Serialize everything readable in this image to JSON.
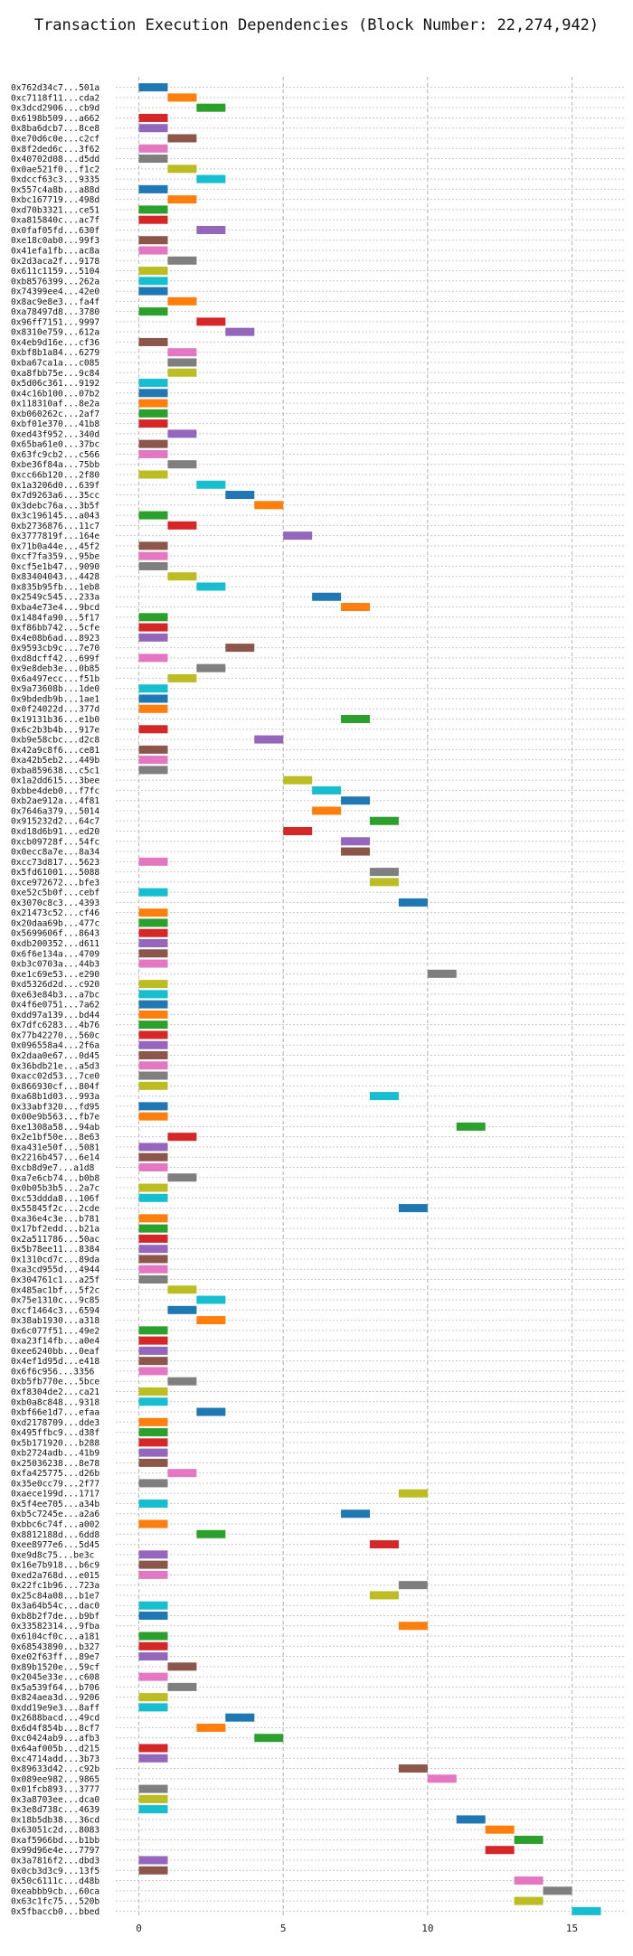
{
  "chart_data": {
    "type": "gantt",
    "title": "Transaction Execution Dependencies (Block Number: 22,274,942)",
    "xlabel": "",
    "ylabel": "",
    "x_ticks": [
      0,
      5,
      10,
      15
    ],
    "xlim": [
      -0.8,
      16.8
    ],
    "grid": true,
    "colors": [
      "#1f77b4",
      "#ff7f0e",
      "#2ca02c",
      "#d62728",
      "#9467bd",
      "#8c564b",
      "#e377c2",
      "#7f7f7f",
      "#bcbd22",
      "#17becf"
    ],
    "tasks": [
      {
        "label": "0x762d34c7...501a",
        "start": 0
      },
      {
        "label": "0xc7118f11...cda2",
        "start": 1
      },
      {
        "label": "0x3dcd2906...cb9d",
        "start": 2
      },
      {
        "label": "0x6198b509...a662",
        "start": 0
      },
      {
        "label": "0x8ba6dcb7...8ce8",
        "start": 0
      },
      {
        "label": "0xe70d6c0e...c2cf",
        "start": 1
      },
      {
        "label": "0x8f2ded6c...3f62",
        "start": 0
      },
      {
        "label": "0x40702d08...d5dd",
        "start": 0
      },
      {
        "label": "0x0ae521f0...f1c2",
        "start": 1
      },
      {
        "label": "0xdccf63c3...9335",
        "start": 2
      },
      {
        "label": "0x557c4a8b...a88d",
        "start": 0
      },
      {
        "label": "0xbc167719...498d",
        "start": 1
      },
      {
        "label": "0xd70b3321...ce51",
        "start": 0
      },
      {
        "label": "0xa815840c...ac7f",
        "start": 0
      },
      {
        "label": "0x0faf05fd...630f",
        "start": 2
      },
      {
        "label": "0xe18c0ab0...99f3",
        "start": 0
      },
      {
        "label": "0x41efa1fb...ac8a",
        "start": 0
      },
      {
        "label": "0x2d3aca2f...9178",
        "start": 1
      },
      {
        "label": "0x611c1159...5104",
        "start": 0
      },
      {
        "label": "0xb8576399...262a",
        "start": 0
      },
      {
        "label": "0x74399ee4...42e0",
        "start": 0
      },
      {
        "label": "0x8ac9e8e3...fa4f",
        "start": 1
      },
      {
        "label": "0xa78497d8...3780",
        "start": 0
      },
      {
        "label": "0x96ff7151...9997",
        "start": 2
      },
      {
        "label": "0x8310e759...612a",
        "start": 3
      },
      {
        "label": "0x4eb9d16e...cf36",
        "start": 0
      },
      {
        "label": "0xbf8b1a84...6279",
        "start": 1
      },
      {
        "label": "0xba67ca1a...c085",
        "start": 1
      },
      {
        "label": "0xa8fbb75e...9c84",
        "start": 1
      },
      {
        "label": "0x5d06c361...9192",
        "start": 0
      },
      {
        "label": "0x4c16b100...07b2",
        "start": 0
      },
      {
        "label": "0x118310af...8e2a",
        "start": 0
      },
      {
        "label": "0xb060262c...2af7",
        "start": 0
      },
      {
        "label": "0xbf01e370...41b8",
        "start": 0
      },
      {
        "label": "0xed43f952...340d",
        "start": 1
      },
      {
        "label": "0x65ba61e0...37bc",
        "start": 0
      },
      {
        "label": "0x63fc9cb2...c566",
        "start": 0
      },
      {
        "label": "0xbe36f84a...75bb",
        "start": 1
      },
      {
        "label": "0xcc66b120...2f80",
        "start": 0
      },
      {
        "label": "0x1a3206d0...639f",
        "start": 2
      },
      {
        "label": "0x7d9263a6...35cc",
        "start": 3
      },
      {
        "label": "0x3debc76a...3b5f",
        "start": 4
      },
      {
        "label": "0x3c196145...a043",
        "start": 0
      },
      {
        "label": "0xb2736876...11c7",
        "start": 1
      },
      {
        "label": "0x3777819f...164e",
        "start": 5
      },
      {
        "label": "0x71b0a44e...45f2",
        "start": 0
      },
      {
        "label": "0xcf7fa359...95be",
        "start": 0
      },
      {
        "label": "0xcf5e1b47...9090",
        "start": 0
      },
      {
        "label": "0x83404043...4428",
        "start": 1
      },
      {
        "label": "0x835b95fb...1eb8",
        "start": 2
      },
      {
        "label": "0x2549c545...233a",
        "start": 6
      },
      {
        "label": "0xba4e73e4...9bcd",
        "start": 7
      },
      {
        "label": "0x1484fa90...5f17",
        "start": 0
      },
      {
        "label": "0xf86bb742...5cfe",
        "start": 0
      },
      {
        "label": "0x4e08b6ad...8923",
        "start": 0
      },
      {
        "label": "0x9593cb9c...7e70",
        "start": 3
      },
      {
        "label": "0xd8dcff42...699f",
        "start": 0
      },
      {
        "label": "0x9e8deb3e...0b85",
        "start": 2
      },
      {
        "label": "0x6a497ecc...f51b",
        "start": 1
      },
      {
        "label": "0x9a73608b...1de0",
        "start": 0
      },
      {
        "label": "0x9bdedb9b...1ae1",
        "start": 0
      },
      {
        "label": "0x0f24022d...377d",
        "start": 0
      },
      {
        "label": "0x19131b36...e1b0",
        "start": 7
      },
      {
        "label": "0x6c2b3b4b...917e",
        "start": 0
      },
      {
        "label": "0xb9e58cbc...d2c8",
        "start": 4
      },
      {
        "label": "0x42a9c8f6...ce81",
        "start": 0
      },
      {
        "label": "0xa42b5eb2...449b",
        "start": 0
      },
      {
        "label": "0xba859638...c5c1",
        "start": 0
      },
      {
        "label": "0x1a2dd615...3bee",
        "start": 5
      },
      {
        "label": "0xbbe4deb0...f7fc",
        "start": 6
      },
      {
        "label": "0xb2ae912a...4f81",
        "start": 7
      },
      {
        "label": "0x7646a379...5014",
        "start": 6
      },
      {
        "label": "0x915232d2...64c7",
        "start": 8
      },
      {
        "label": "0xd18d6b91...ed20",
        "start": 5
      },
      {
        "label": "0xcb09728f...54fc",
        "start": 7
      },
      {
        "label": "0x0ecc8a7e...8a34",
        "start": 7
      },
      {
        "label": "0xcc73d817...5623",
        "start": 0
      },
      {
        "label": "0x5fd61001...5088",
        "start": 8
      },
      {
        "label": "0xce972672...bfe3",
        "start": 8
      },
      {
        "label": "0xe52c5b0f...cebf",
        "start": 0
      },
      {
        "label": "0x3070c8c3...4393",
        "start": 9
      },
      {
        "label": "0x21473c52...cf46",
        "start": 0
      },
      {
        "label": "0x20daa69b...477c",
        "start": 0
      },
      {
        "label": "0x5699606f...8643",
        "start": 0
      },
      {
        "label": "0xdb200352...d611",
        "start": 0
      },
      {
        "label": "0x6f6e134a...4709",
        "start": 0
      },
      {
        "label": "0xb3c0703a...44b3",
        "start": 0
      },
      {
        "label": "0xe1c69e53...e290",
        "start": 10
      },
      {
        "label": "0xd5326d2d...c920",
        "start": 0
      },
      {
        "label": "0xe63e84b3...a7bc",
        "start": 0
      },
      {
        "label": "0x4f6e0751...7a62",
        "start": 0
      },
      {
        "label": "0xdd97a139...bd44",
        "start": 0
      },
      {
        "label": "0x7dfc6283...4b76",
        "start": 0
      },
      {
        "label": "0x77b42270...560c",
        "start": 0
      },
      {
        "label": "0x096558a4...2f6a",
        "start": 0
      },
      {
        "label": "0x2daa0e67...0d45",
        "start": 0
      },
      {
        "label": "0x36bdb21e...a5d3",
        "start": 0
      },
      {
        "label": "0xacc02d53...7ce0",
        "start": 0
      },
      {
        "label": "0x866930cf...804f",
        "start": 0
      },
      {
        "label": "0xa68b1d03...993a",
        "start": 8
      },
      {
        "label": "0x33abf320...fd95",
        "start": 0
      },
      {
        "label": "0x00e9b563...fb7e",
        "start": 0
      },
      {
        "label": "0xe1308a58...94ab",
        "start": 11
      },
      {
        "label": "0x2e1bf50e...8e63",
        "start": 1
      },
      {
        "label": "0xa431e50f...5081",
        "start": 0
      },
      {
        "label": "0x2216b457...6e14",
        "start": 0
      },
      {
        "label": "0xcb8d9e7...a1d8",
        "start": 0
      },
      {
        "label": "0xa7e6cb74...b0b8",
        "start": 1
      },
      {
        "label": "0x0b05b3b5...2a7c",
        "start": 0
      },
      {
        "label": "0xc53ddda8...106f",
        "start": 0
      },
      {
        "label": "0x55845f2c...2cde",
        "start": 9
      },
      {
        "label": "0xa36e4c3e...b781",
        "start": 0
      },
      {
        "label": "0x17bf2edd...b21a",
        "start": 0
      },
      {
        "label": "0x2a511786...50ac",
        "start": 0
      },
      {
        "label": "0x5b78ee11...8384",
        "start": 0
      },
      {
        "label": "0x1310cd7c...89da",
        "start": 0
      },
      {
        "label": "0xa3cd955d...4944",
        "start": 0
      },
      {
        "label": "0x304761c1...a25f",
        "start": 0
      },
      {
        "label": "0x485ac1bf...5f2c",
        "start": 1
      },
      {
        "label": "0x75e1310c...9c85",
        "start": 2
      },
      {
        "label": "0xcf1464c3...6594",
        "start": 1
      },
      {
        "label": "0x38ab1930...a318",
        "start": 2
      },
      {
        "label": "0x6c077f51...49e2",
        "start": 0
      },
      {
        "label": "0xa23f14fb...a0e4",
        "start": 0
      },
      {
        "label": "0xee6240bb...0eaf",
        "start": 0
      },
      {
        "label": "0x4ef1d95d...e418",
        "start": 0
      },
      {
        "label": "0x6f6c956...3356",
        "start": 0
      },
      {
        "label": "0xb5fb770e...5bce",
        "start": 1
      },
      {
        "label": "0xf8304de2...ca21",
        "start": 0
      },
      {
        "label": "0xb0a8c848...9318",
        "start": 0
      },
      {
        "label": "0xbf66e1d7...efaa",
        "start": 2
      },
      {
        "label": "0xd2178709...dde3",
        "start": 0
      },
      {
        "label": "0x495ffbc9...d38f",
        "start": 0
      },
      {
        "label": "0x5b171920...b288",
        "start": 0
      },
      {
        "label": "0xb2724adb...41b9",
        "start": 0
      },
      {
        "label": "0x25036238...8e78",
        "start": 0
      },
      {
        "label": "0xfa425775...d26b",
        "start": 1
      },
      {
        "label": "0x35e0cc79...2f77",
        "start": 0
      },
      {
        "label": "0xaece199d...1717",
        "start": 9
      },
      {
        "label": "0x5f4ee705...a34b",
        "start": 0
      },
      {
        "label": "0xb5c7245e...a2a6",
        "start": 7
      },
      {
        "label": "0xbbc6c74f...a002",
        "start": 0
      },
      {
        "label": "0x8812188d...6dd8",
        "start": 2
      },
      {
        "label": "0xee8977e6...5d45",
        "start": 8
      },
      {
        "label": "0xe9d8c75...be3c",
        "start": 0
      },
      {
        "label": "0x16e7b918...b6c9",
        "start": 0
      },
      {
        "label": "0xed2a768d...e015",
        "start": 0
      },
      {
        "label": "0x22fc1b96...723a",
        "start": 9
      },
      {
        "label": "0x25c84a08...b1e7",
        "start": 8
      },
      {
        "label": "0x3a64b54c...dac0",
        "start": 0
      },
      {
        "label": "0xb8b2f7de...b9bf",
        "start": 0
      },
      {
        "label": "0x33582314...9fba",
        "start": 9
      },
      {
        "label": "0x6104cf0c...a181",
        "start": 0
      },
      {
        "label": "0x68543890...b327",
        "start": 0
      },
      {
        "label": "0xe02f63ff...89e7",
        "start": 0
      },
      {
        "label": "0x89b1520e...59cf",
        "start": 1
      },
      {
        "label": "0x2045e33e...c608",
        "start": 0
      },
      {
        "label": "0x5a539f64...b706",
        "start": 1
      },
      {
        "label": "0x824aea3d...9206",
        "start": 0
      },
      {
        "label": "0xdd19e9e3...8aff",
        "start": 0
      },
      {
        "label": "0x2688bacd...49cd",
        "start": 3
      },
      {
        "label": "0x6d4f854b...8cf7",
        "start": 2
      },
      {
        "label": "0xc0424ab9...afb3",
        "start": 4
      },
      {
        "label": "0x64af005b...d215",
        "start": 0
      },
      {
        "label": "0xc4714add...3b73",
        "start": 0
      },
      {
        "label": "0x89633d42...c92b",
        "start": 9
      },
      {
        "label": "0x089ee982...9865",
        "start": 10
      },
      {
        "label": "0x01fcb893...3777",
        "start": 0
      },
      {
        "label": "0x3a8703ee...dca0",
        "start": 0
      },
      {
        "label": "0x3e8d738c...4639",
        "start": 0
      },
      {
        "label": "0x18b5db38...36cd",
        "start": 11
      },
      {
        "label": "0x63051c2d...8083",
        "start": 12
      },
      {
        "label": "0xaf5966bd...b1bb",
        "start": 13
      },
      {
        "label": "0x99d96e4e...7797",
        "start": 12
      },
      {
        "label": "0x3a7816f2...dbd3",
        "start": 0
      },
      {
        "label": "0x0cb3d3c9...13f5",
        "start": 0
      },
      {
        "label": "0x50c6111c...d48b",
        "start": 13
      },
      {
        "label": "0xeabbb9cb...60ca",
        "start": 14
      },
      {
        "label": "0x63c1fc75...520b",
        "start": 13
      },
      {
        "label": "0x5fbaccb0...bbed",
        "start": 15
      }
    ]
  }
}
